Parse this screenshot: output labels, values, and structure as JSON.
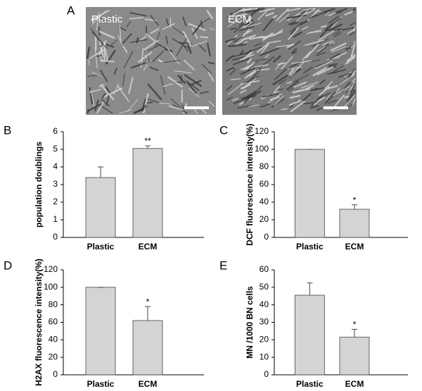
{
  "images": {
    "label": "A",
    "items": [
      "Plastic",
      "ECM"
    ]
  },
  "chart_data": [
    {
      "type": "bar",
      "panel": "B",
      "ylabel": "population doublings",
      "categories": [
        "Plastic",
        "ECM"
      ],
      "values": [
        3.4,
        5.05
      ],
      "errors": [
        0.6,
        0.15
      ],
      "annotations": [
        null,
        "**"
      ],
      "color": "#d4d4d4",
      "ylim": [
        0,
        6
      ],
      "yticks": [
        0,
        1,
        2,
        3,
        4,
        5,
        6
      ]
    },
    {
      "type": "bar",
      "panel": "C",
      "ylabel": "DCF fluorescence intensity(%)",
      "categories": [
        "Plastic",
        "ECM"
      ],
      "values": [
        100,
        32
      ],
      "errors": [
        0,
        5
      ],
      "annotations": [
        null,
        "*"
      ],
      "color": "#d4d4d4",
      "ylim": [
        0,
        120
      ],
      "yticks": [
        0,
        20,
        40,
        60,
        80,
        100,
        120
      ]
    },
    {
      "type": "bar",
      "panel": "D",
      "ylabel": "H2AX fluorescence intensity(%)",
      "categories": [
        "Plastic",
        "ECM"
      ],
      "values": [
        100,
        62
      ],
      "errors": [
        0,
        16
      ],
      "annotations": [
        null,
        "*"
      ],
      "color": "#d4d4d4",
      "ylim": [
        0,
        120
      ],
      "yticks": [
        0,
        20,
        40,
        60,
        80,
        100,
        120
      ]
    },
    {
      "type": "bar",
      "panel": "E",
      "ylabel": "MN /1000 BN cells",
      "categories": [
        "Plastic",
        "ECM"
      ],
      "values": [
        45.5,
        21.5
      ],
      "errors": [
        7,
        4.5
      ],
      "annotations": [
        null,
        "*"
      ],
      "color": "#d4d4d4",
      "ylim": [
        0,
        60
      ],
      "yticks": [
        0,
        10,
        20,
        30,
        40,
        50,
        60
      ]
    }
  ]
}
